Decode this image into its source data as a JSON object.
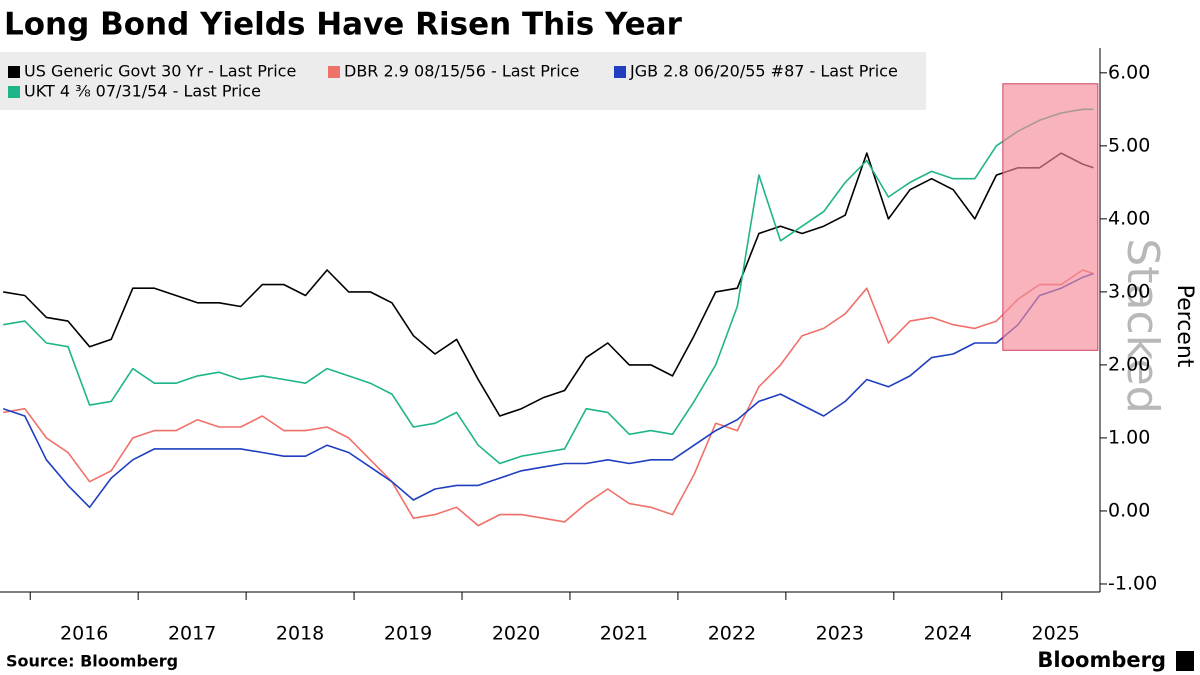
{
  "chart_data": {
    "type": "line",
    "title": "Long Bond Yields Have Risen This Year",
    "y_label": "Percent",
    "watermark": "Stacked",
    "source": "Source: Bloomberg",
    "brand": "Bloomberg",
    "x": [
      2015.75,
      2015.95,
      2016.15,
      2016.35,
      2016.55,
      2016.75,
      2016.95,
      2017.15,
      2017.35,
      2017.55,
      2017.75,
      2017.95,
      2018.15,
      2018.35,
      2018.55,
      2018.75,
      2018.95,
      2019.15,
      2019.35,
      2019.55,
      2019.75,
      2019.95,
      2020.15,
      2020.35,
      2020.55,
      2020.75,
      2020.95,
      2021.15,
      2021.35,
      2021.55,
      2021.75,
      2021.95,
      2022.15,
      2022.35,
      2022.55,
      2022.75,
      2022.95,
      2023.15,
      2023.35,
      2023.55,
      2023.75,
      2023.95,
      2024.15,
      2024.35,
      2024.55,
      2024.75,
      2024.95,
      2025.15,
      2025.35,
      2025.55,
      2025.75,
      2025.85
    ],
    "series": [
      {
        "name": "US Generic Govt 30 Yr - Last Price",
        "color": "#000000",
        "values": [
          3.0,
          2.95,
          2.65,
          2.6,
          2.25,
          2.35,
          3.05,
          3.05,
          2.95,
          2.85,
          2.85,
          2.8,
          3.1,
          3.1,
          2.95,
          3.3,
          3.0,
          3.0,
          2.85,
          2.4,
          2.15,
          2.35,
          1.8,
          1.3,
          1.4,
          1.55,
          1.65,
          2.1,
          2.3,
          2.0,
          2.0,
          1.85,
          2.4,
          3.0,
          3.05,
          3.8,
          3.9,
          3.8,
          3.9,
          4.05,
          4.9,
          4.0,
          4.4,
          4.55,
          4.4,
          4.0,
          4.6,
          4.7,
          4.7,
          4.9,
          4.75,
          4.7
        ]
      },
      {
        "name": "DBR 2.9 08/15/56 - Last Price",
        "color": "#f0706a",
        "values": [
          1.35,
          1.4,
          1.0,
          0.8,
          0.4,
          0.55,
          1.0,
          1.1,
          1.1,
          1.25,
          1.15,
          1.15,
          1.3,
          1.1,
          1.1,
          1.15,
          1.0,
          0.7,
          0.4,
          -0.1,
          -0.05,
          0.05,
          -0.2,
          -0.05,
          -0.05,
          -0.1,
          -0.15,
          0.1,
          0.3,
          0.1,
          0.05,
          -0.05,
          0.5,
          1.2,
          1.1,
          1.7,
          2.0,
          2.4,
          2.5,
          2.7,
          3.05,
          2.3,
          2.6,
          2.65,
          2.55,
          2.5,
          2.6,
          2.9,
          3.1,
          3.1,
          3.3,
          3.25
        ]
      },
      {
        "name": "JGB 2.8 06/20/55 #87 - Last Price",
        "color": "#1f3fbf",
        "values": [
          1.4,
          1.3,
          0.7,
          0.35,
          0.05,
          0.45,
          0.7,
          0.85,
          0.85,
          0.85,
          0.85,
          0.85,
          0.8,
          0.75,
          0.75,
          0.9,
          0.8,
          0.6,
          0.4,
          0.15,
          0.3,
          0.35,
          0.35,
          0.45,
          0.55,
          0.6,
          0.65,
          0.65,
          0.7,
          0.65,
          0.7,
          0.7,
          0.9,
          1.1,
          1.25,
          1.5,
          1.6,
          1.45,
          1.3,
          1.5,
          1.8,
          1.7,
          1.85,
          2.1,
          2.15,
          2.3,
          2.3,
          2.55,
          2.95,
          3.05,
          3.2,
          3.25
        ]
      },
      {
        "name": "UKT 4 ⅜ 07/31/54 - Last Price",
        "color": "#1fb58a",
        "values": [
          2.55,
          2.6,
          2.3,
          2.25,
          1.45,
          1.5,
          1.95,
          1.75,
          1.75,
          1.85,
          1.9,
          1.8,
          1.85,
          1.8,
          1.75,
          1.95,
          1.85,
          1.75,
          1.6,
          1.15,
          1.2,
          1.35,
          0.9,
          0.65,
          0.75,
          0.8,
          0.85,
          1.4,
          1.35,
          1.05,
          1.1,
          1.05,
          1.5,
          2.0,
          2.8,
          4.6,
          3.7,
          3.9,
          4.1,
          4.5,
          4.8,
          4.3,
          4.5,
          4.65,
          4.55,
          4.55,
          5.0,
          5.2,
          5.35,
          5.45,
          5.5,
          5.5
        ]
      }
    ],
    "xlim": [
      2015.72,
      2025.91
    ],
    "xticks": [
      {
        "value": 2016.5,
        "label": "2016"
      },
      {
        "value": 2017.5,
        "label": "2017"
      },
      {
        "value": 2018.5,
        "label": "2018"
      },
      {
        "value": 2019.5,
        "label": "2019"
      },
      {
        "value": 2020.5,
        "label": "2020"
      },
      {
        "value": 2021.5,
        "label": "2021"
      },
      {
        "value": 2022.5,
        "label": "2022"
      },
      {
        "value": 2023.5,
        "label": "2023"
      },
      {
        "value": 2024.5,
        "label": "2024"
      },
      {
        "value": 2025.5,
        "label": "2025"
      }
    ],
    "ylim": [
      -1.11,
      6.34
    ],
    "yticks": [
      {
        "value": 6,
        "label": "6.00"
      },
      {
        "value": 5,
        "label": "5.00"
      },
      {
        "value": 4,
        "label": "4.00"
      },
      {
        "value": 3,
        "label": "3.00"
      },
      {
        "value": 2,
        "label": "2.00"
      },
      {
        "value": 1,
        "label": "1.00"
      },
      {
        "value": 0,
        "label": "0.00"
      },
      {
        "value": -1,
        "label": "-1.00"
      }
    ],
    "highlight": {
      "x": [
        2025.01,
        2025.89
      ],
      "y": [
        2.2,
        5.85
      ],
      "color": "#f48a9a"
    }
  }
}
